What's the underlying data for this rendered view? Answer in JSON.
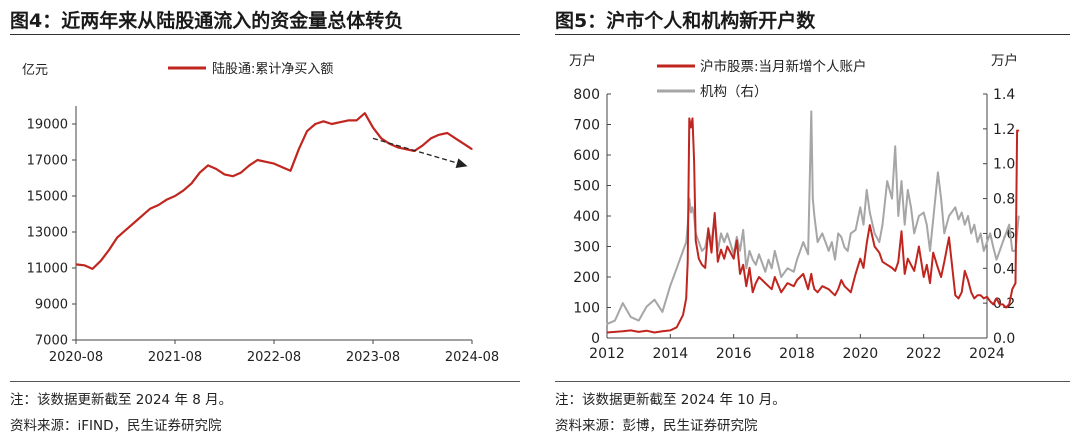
{
  "panels": {
    "left": {
      "title": "图4：近两年来从陆股通流入的资金量总体转负",
      "note": "注：该数据更新截至 2024 年 8 月。",
      "source": "资料来源：iFIND，民生证券研究院"
    },
    "right": {
      "title": "图5：沪市个人和机构新开户数",
      "note": "注：该数据更新截至 2024 年 10 月。",
      "source": "资料来源：彭博，民生证券研究院"
    }
  },
  "colors": {
    "red": "#c0261f",
    "gray": "#a6a6a6",
    "axis": "#444444",
    "arrow": "#222222"
  },
  "chart_data": [
    {
      "type": "line",
      "ylabel": "亿元",
      "ylim": [
        7000,
        20000
      ],
      "yticks": [
        7000,
        9000,
        11000,
        13000,
        15000,
        17000,
        19000
      ],
      "xlim": [
        "2020-08",
        "2024-08"
      ],
      "xticks": [
        "2020-08",
        "2021-08",
        "2022-08",
        "2023-08",
        "2024-08"
      ],
      "grid": false,
      "legend": "top-center",
      "series": [
        {
          "name": "陆股通:累计净买入额",
          "color": "#c0261f",
          "points": [
            [
              "2020-08-01",
              11200
            ],
            [
              "2020-09-01",
              11150
            ],
            [
              "2020-10-01",
              10950
            ],
            [
              "2020-11-01",
              11400
            ],
            [
              "2020-12-01",
              12000
            ],
            [
              "2021-01-01",
              12700
            ],
            [
              "2021-02-01",
              13100
            ],
            [
              "2021-03-01",
              13500
            ],
            [
              "2021-04-01",
              13900
            ],
            [
              "2021-05-01",
              14300
            ],
            [
              "2021-06-01",
              14500
            ],
            [
              "2021-07-01",
              14800
            ],
            [
              "2021-08-01",
              15000
            ],
            [
              "2021-09-01",
              15300
            ],
            [
              "2021-10-01",
              15700
            ],
            [
              "2021-11-01",
              16300
            ],
            [
              "2021-12-01",
              16700
            ],
            [
              "2022-01-01",
              16500
            ],
            [
              "2022-02-01",
              16200
            ],
            [
              "2022-03-01",
              16100
            ],
            [
              "2022-04-01",
              16300
            ],
            [
              "2022-05-01",
              16700
            ],
            [
              "2022-06-01",
              17000
            ],
            [
              "2022-07-01",
              16900
            ],
            [
              "2022-08-01",
              16800
            ],
            [
              "2022-09-01",
              16600
            ],
            [
              "2022-10-01",
              16400
            ],
            [
              "2022-11-01",
              17600
            ],
            [
              "2022-12-01",
              18600
            ],
            [
              "2023-01-01",
              19000
            ],
            [
              "2023-02-01",
              19150
            ],
            [
              "2023-03-01",
              19000
            ],
            [
              "2023-04-01",
              19100
            ],
            [
              "2023-05-01",
              19200
            ],
            [
              "2023-06-01",
              19200
            ],
            [
              "2023-07-01",
              19600
            ],
            [
              "2023-08-01",
              18800
            ],
            [
              "2023-09-01",
              18200
            ],
            [
              "2023-10-01",
              17900
            ],
            [
              "2023-11-01",
              17700
            ],
            [
              "2023-12-01",
              17600
            ],
            [
              "2024-01-01",
              17500
            ],
            [
              "2024-02-01",
              17800
            ],
            [
              "2024-03-01",
              18200
            ],
            [
              "2024-04-01",
              18400
            ],
            [
              "2024-05-01",
              18500
            ],
            [
              "2024-06-01",
              18200
            ],
            [
              "2024-07-01",
              17900
            ],
            [
              "2024-08-01",
              17600
            ]
          ]
        }
      ],
      "annotations": [
        {
          "type": "arrow",
          "style": "dashed",
          "from": [
            "2023-08-01",
            18200
          ],
          "to": [
            "2024-07-15",
            16650
          ]
        }
      ]
    },
    {
      "type": "line",
      "ylabel": "万户",
      "y2label": "万户",
      "ylim": [
        0,
        800
      ],
      "yticks": [
        0,
        100,
        200,
        300,
        400,
        500,
        600,
        700,
        800
      ],
      "y2lim": [
        0,
        1.4
      ],
      "y2ticks": [
        0.0,
        0.2,
        0.4,
        0.6,
        0.8,
        1.0,
        1.2,
        1.4
      ],
      "y2tick_labels": [
        "0.0",
        "0.2",
        "0.4",
        "0.6",
        "0.8",
        "1.0",
        "1.2",
        "1.4"
      ],
      "xlim": [
        2012,
        2024
      ],
      "xticks": [
        2012,
        2014,
        2016,
        2018,
        2020,
        2022,
        2024
      ],
      "grid": false,
      "legend": "top-center",
      "series": [
        {
          "name": "沪市股票:当月新增个人账户",
          "axis": "left",
          "color": "#c0261f",
          "x": [
            2012.0,
            2012.25,
            2012.5,
            2012.75,
            2013.0,
            2013.25,
            2013.5,
            2013.75,
            2014.0,
            2014.2,
            2014.4,
            2014.5,
            2014.55,
            2014.6,
            2014.65,
            2014.7,
            2014.75,
            2014.8,
            2014.9,
            2015.0,
            2015.1,
            2015.2,
            2015.3,
            2015.4,
            2015.5,
            2015.6,
            2015.7,
            2015.8,
            2016.0,
            2016.1,
            2016.2,
            2016.3,
            2016.4,
            2016.5,
            2016.6,
            2016.7,
            2016.8,
            2017.0,
            2017.1,
            2017.2,
            2017.3,
            2017.5,
            2017.7,
            2017.9,
            2018.0,
            2018.2,
            2018.35,
            2018.45,
            2018.5,
            2018.55,
            2018.65,
            2018.8,
            2019.0,
            2019.1,
            2019.2,
            2019.3,
            2019.4,
            2019.5,
            2019.6,
            2019.7,
            2019.85,
            2020.0,
            2020.1,
            2020.2,
            2020.3,
            2020.45,
            2020.6,
            2020.7,
            2020.85,
            2021.0,
            2021.1,
            2021.2,
            2021.3,
            2021.4,
            2021.5,
            2021.6,
            2021.7,
            2021.85,
            2022.0,
            2022.1,
            2022.2,
            2022.3,
            2022.45,
            2022.55,
            2022.65,
            2022.8,
            2023.0,
            2023.1,
            2023.2,
            2023.3,
            2023.4,
            2023.5,
            2023.6,
            2023.7,
            2023.8,
            2023.9,
            2024.0,
            2024.1,
            2024.2,
            2024.3,
            2024.4,
            2024.5,
            2024.6,
            2024.7,
            2024.8,
            2024.9,
            2024.95,
            2025.0
          ],
          "values": [
            18,
            20,
            22,
            25,
            20,
            24,
            18,
            22,
            25,
            35,
            75,
            130,
            250,
            720,
            690,
            720,
            580,
            320,
            260,
            240,
            230,
            360,
            280,
            410,
            250,
            290,
            260,
            300,
            260,
            320,
            210,
            240,
            170,
            230,
            150,
            180,
            200,
            180,
            170,
            160,
            200,
            150,
            180,
            170,
            190,
            210,
            160,
            210,
            180,
            160,
            150,
            170,
            160,
            150,
            140,
            160,
            190,
            170,
            160,
            150,
            210,
            260,
            230,
            310,
            370,
            300,
            280,
            250,
            240,
            230,
            220,
            250,
            350,
            210,
            260,
            240,
            220,
            300,
            200,
            240,
            180,
            280,
            230,
            200,
            250,
            330,
            140,
            130,
            150,
            220,
            190,
            150,
            130,
            140,
            140,
            130,
            135,
            120,
            110,
            130,
            110,
            110,
            100,
            110,
            160,
            180,
            680,
            680
          ]
        },
        {
          "name": "机构（右）",
          "axis": "right",
          "color": "#a6a6a6",
          "x": [
            2012.0,
            2012.25,
            2012.5,
            2012.75,
            2013.0,
            2013.25,
            2013.5,
            2013.75,
            2014.0,
            2014.2,
            2014.4,
            2014.5,
            2014.55,
            2014.6,
            2014.65,
            2014.7,
            2014.75,
            2014.8,
            2014.9,
            2015.0,
            2015.1,
            2015.2,
            2015.3,
            2015.4,
            2015.5,
            2015.6,
            2015.7,
            2015.8,
            2016.0,
            2016.1,
            2016.2,
            2016.3,
            2016.4,
            2016.5,
            2016.6,
            2016.7,
            2016.8,
            2017.0,
            2017.1,
            2017.2,
            2017.3,
            2017.5,
            2017.7,
            2017.9,
            2018.0,
            2018.2,
            2018.35,
            2018.45,
            2018.5,
            2018.55,
            2018.65,
            2018.8,
            2019.0,
            2019.1,
            2019.2,
            2019.3,
            2019.4,
            2019.5,
            2019.6,
            2019.7,
            2019.85,
            2020.0,
            2020.1,
            2020.2,
            2020.3,
            2020.45,
            2020.6,
            2020.7,
            2020.85,
            2021.0,
            2021.1,
            2021.2,
            2021.3,
            2021.4,
            2021.5,
            2021.6,
            2021.7,
            2021.85,
            2022.0,
            2022.1,
            2022.2,
            2022.3,
            2022.45,
            2022.55,
            2022.65,
            2022.8,
            2023.0,
            2023.1,
            2023.2,
            2023.3,
            2023.4,
            2023.5,
            2023.6,
            2023.7,
            2023.8,
            2023.9,
            2024.0,
            2024.1,
            2024.2,
            2024.3,
            2024.4,
            2024.5,
            2024.6,
            2024.7,
            2024.8,
            2024.9,
            2024.95,
            2025.0
          ],
          "values": [
            0.08,
            0.1,
            0.2,
            0.12,
            0.1,
            0.18,
            0.22,
            0.15,
            0.3,
            0.4,
            0.5,
            0.55,
            0.65,
            0.8,
            0.72,
            0.75,
            0.7,
            0.6,
            0.55,
            0.5,
            0.52,
            0.62,
            0.55,
            0.7,
            0.5,
            0.6,
            0.55,
            0.6,
            0.48,
            0.58,
            0.5,
            0.62,
            0.4,
            0.5,
            0.45,
            0.42,
            0.48,
            0.38,
            0.45,
            0.4,
            0.5,
            0.35,
            0.4,
            0.38,
            0.45,
            0.55,
            0.48,
            1.3,
            0.8,
            0.7,
            0.55,
            0.6,
            0.5,
            0.55,
            0.45,
            0.6,
            0.58,
            0.52,
            0.5,
            0.6,
            0.62,
            0.75,
            0.65,
            0.85,
            0.72,
            0.6,
            0.55,
            0.65,
            0.9,
            0.8,
            1.1,
            0.7,
            0.9,
            0.65,
            0.85,
            0.75,
            0.6,
            0.7,
            0.72,
            0.65,
            0.5,
            0.68,
            0.95,
            0.8,
            0.6,
            0.7,
            0.75,
            0.68,
            0.72,
            0.65,
            0.7,
            0.6,
            0.65,
            0.55,
            0.6,
            0.5,
            0.55,
            0.6,
            0.52,
            0.45,
            0.5,
            0.55,
            0.6,
            0.65,
            0.5,
            0.5,
            0.6,
            0.7
          ]
        }
      ]
    }
  ]
}
